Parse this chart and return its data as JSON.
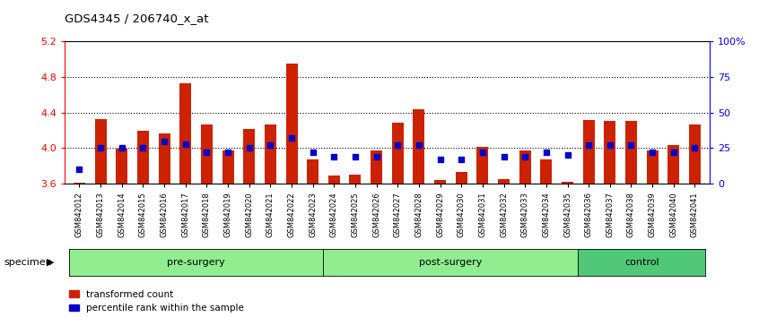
{
  "title": "GDS4345 / 206740_x_at",
  "samples": [
    "GSM842012",
    "GSM842013",
    "GSM842014",
    "GSM842015",
    "GSM842016",
    "GSM842017",
    "GSM842018",
    "GSM842019",
    "GSM842020",
    "GSM842021",
    "GSM842022",
    "GSM842023",
    "GSM842024",
    "GSM842025",
    "GSM842026",
    "GSM842027",
    "GSM842028",
    "GSM842029",
    "GSM842030",
    "GSM842031",
    "GSM842032",
    "GSM842033",
    "GSM842034",
    "GSM842035",
    "GSM842036",
    "GSM842037",
    "GSM842038",
    "GSM842039",
    "GSM842040",
    "GSM842041"
  ],
  "red_values": [
    3.61,
    4.33,
    3.99,
    4.2,
    4.17,
    4.73,
    4.27,
    3.97,
    4.22,
    4.27,
    4.95,
    3.87,
    3.69,
    3.7,
    3.97,
    4.29,
    4.44,
    3.64,
    3.73,
    4.01,
    3.65,
    3.97,
    3.87,
    3.62,
    4.32,
    4.31,
    4.31,
    3.97,
    4.04,
    4.27
  ],
  "blue_values": [
    10,
    25,
    25,
    25,
    30,
    28,
    22,
    22,
    25,
    27,
    32,
    22,
    19,
    19,
    19,
    27,
    27,
    17,
    17,
    22,
    19,
    19,
    22,
    20,
    27,
    27,
    27,
    22,
    22,
    25
  ],
  "group_defs": [
    {
      "label": "pre-surgery",
      "start": 0,
      "end": 11,
      "color": "#90EE90"
    },
    {
      "label": "post-surgery",
      "start": 12,
      "end": 23,
      "color": "#90EE90"
    },
    {
      "label": "control",
      "start": 24,
      "end": 29,
      "color": "#50C878"
    }
  ],
  "ylim_left": [
    3.6,
    5.2
  ],
  "ylim_right": [
    0,
    100
  ],
  "yticks_left": [
    3.6,
    4.0,
    4.4,
    4.8,
    5.2
  ],
  "yticks_right": [
    0,
    25,
    50,
    75,
    100
  ],
  "ytick_right_labels": [
    "0",
    "25",
    "50",
    "75",
    "100%"
  ],
  "bar_color": "#CC2200",
  "dot_color": "#0000CC",
  "bar_width": 0.55,
  "grid_lines": [
    4.0,
    4.4,
    4.8
  ],
  "baseline": 3.6,
  "bg_color": "#F0F0F0"
}
